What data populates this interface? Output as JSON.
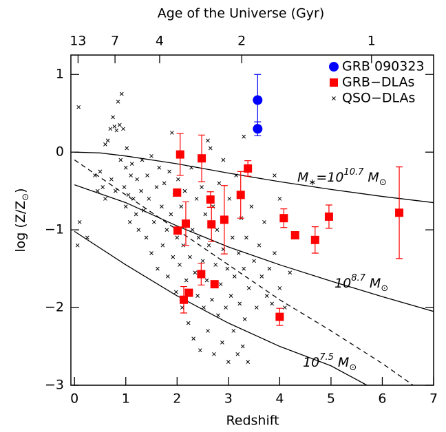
{
  "chart_data": {
    "type": "scatter",
    "x2_title": "Age of the Universe (Gyr)",
    "x_title": "Redshift",
    "y_title_parts": [
      {
        "text": "log (Z/Z"
      },
      {
        "text": "⊙",
        "pos": "sub"
      },
      {
        "text": ")"
      }
    ],
    "xlim": [
      -0.07,
      7
    ],
    "ylim": [
      -3,
      1.25
    ],
    "xticks": [
      0,
      1,
      2,
      3,
      4,
      5,
      6,
      7
    ],
    "yticks": [
      {
        "value": -3,
        "label": "−3"
      },
      {
        "value": -2,
        "label": "−2"
      },
      {
        "value": -1,
        "label": "−1"
      },
      0,
      1
    ],
    "x2ticks": [
      {
        "value": 0.07,
        "label": "13"
      },
      {
        "value": 0.79,
        "label": "7"
      },
      {
        "value": 1.66,
        "label": "4"
      },
      {
        "value": 3.26,
        "label": "2"
      },
      {
        "value": 5.79,
        "label": "1"
      }
    ],
    "legend": "upper right",
    "series": [
      {
        "name": "GRB 090323",
        "color": "#0000ff",
        "marker": "circle",
        "x": [
          3.57,
          3.57
        ],
        "values": [
          0.67,
          0.3
        ],
        "errors": [
          0.33,
          0.09
        ]
      },
      {
        "name": "GRB−DLAs",
        "color": "#ff0000",
        "marker": "square",
        "x": [
          2.06,
          2.48,
          3.38,
          2.0,
          2.17,
          2.01,
          2.65,
          2.67,
          2.92,
          3.24,
          4.08,
          4.3,
          4.69,
          4.96,
          6.33,
          2.47,
          2.73,
          2.13,
          2.23,
          4.0
        ],
        "values": [
          -0.03,
          -0.08,
          -0.21,
          -0.52,
          -0.92,
          -1.01,
          -0.61,
          -0.93,
          -0.87,
          -0.55,
          -0.85,
          -1.07,
          -1.13,
          -0.83,
          -0.78,
          -1.57,
          -1.7,
          -1.9,
          -1.81,
          -2.12
        ],
        "errors": [
          0.27,
          0.3,
          0.1,
          null,
          0.28,
          null,
          0.1,
          0.22,
          0.44,
          0.3,
          0.12,
          null,
          0.17,
          0.15,
          0.59,
          0.14,
          null,
          0.17,
          null,
          0.11
        ]
      },
      {
        "name": "QSO−DLAs",
        "color": "#000000",
        "marker": "cross",
        "x": [
          0.08,
          0.06,
          0.1,
          0.25,
          0.4,
          0.45,
          0.5,
          0.55,
          0.6,
          0.6,
          0.65,
          0.7,
          0.72,
          0.75,
          0.78,
          0.8,
          0.82,
          0.85,
          0.88,
          0.9,
          0.92,
          0.95,
          0.97,
          1.0,
          1.0,
          1.02,
          1.05,
          1.08,
          1.1,
          1.12,
          1.15,
          1.2,
          1.22,
          1.25,
          1.3,
          1.32,
          1.35,
          1.4,
          1.42,
          1.45,
          1.5,
          1.5,
          1.55,
          1.6,
          1.62,
          1.65,
          1.7,
          1.72,
          1.75,
          1.8,
          1.82,
          1.85,
          1.88,
          1.9,
          1.92,
          1.95,
          1.98,
          2.0,
          2.02,
          2.05,
          2.08,
          2.1,
          2.12,
          2.15,
          2.18,
          2.2,
          2.22,
          2.25,
          2.28,
          2.3,
          2.32,
          2.35,
          2.38,
          2.4,
          2.42,
          2.45,
          2.48,
          2.5,
          2.52,
          2.55,
          2.58,
          2.6,
          2.62,
          2.65,
          2.68,
          2.7,
          2.72,
          2.75,
          2.78,
          2.8,
          2.82,
          2.85,
          2.88,
          2.9,
          2.92,
          2.95,
          2.98,
          3.0,
          3.02,
          3.05,
          3.08,
          3.1,
          3.12,
          3.15,
          3.18,
          3.2,
          3.22,
          3.25,
          3.28,
          3.3,
          3.32,
          3.35,
          3.38,
          3.4,
          3.45,
          3.5,
          3.55,
          3.6,
          3.65,
          3.7,
          3.75,
          3.8,
          3.85,
          3.9,
          4.0,
          4.1,
          4.2,
          4.0,
          3.9,
          3.3,
          2.9,
          2.6
        ],
        "values": [
          0.58,
          -1.2,
          -0.9,
          -1.1,
          -0.3,
          -0.5,
          -0.25,
          -0.45,
          -0.6,
          0.1,
          0.15,
          0.3,
          -0.35,
          0.45,
          0.33,
          -0.5,
          0.28,
          0.65,
          0.35,
          -0.1,
          0.75,
          0.3,
          -0.45,
          -0.2,
          -0.7,
          0.05,
          -0.55,
          -0.9,
          -0.3,
          -0.15,
          -0.6,
          -0.8,
          -0.35,
          -1.0,
          -0.5,
          -0.1,
          -0.75,
          -1.1,
          -0.3,
          -0.6,
          -1.3,
          -0.05,
          -0.9,
          -0.45,
          -1.5,
          -0.2,
          -0.7,
          -1.2,
          -0.4,
          -1.0,
          -1.6,
          -0.25,
          -0.8,
          0.25,
          -1.35,
          -0.55,
          -1.8,
          -1.1,
          -0.35,
          -1.45,
          -0.7,
          -2.0,
          -1.2,
          -0.5,
          -1.65,
          -0.9,
          -2.2,
          -1.35,
          -0.2,
          -1.0,
          -2.4,
          -1.55,
          -0.6,
          -1.85,
          -1.1,
          -2.55,
          -0.45,
          -1.4,
          -2.0,
          -0.8,
          -1.65,
          -2.3,
          -1.2,
          0.05,
          -1.9,
          -0.7,
          -2.6,
          -1.45,
          -1.0,
          -2.1,
          -0.4,
          -1.7,
          -2.45,
          -1.25,
          -0.9,
          -2.0,
          -1.5,
          -2.7,
          -0.6,
          -1.85,
          -1.1,
          -2.3,
          -1.6,
          -0.3,
          -2.6,
          -1.3,
          -1.95,
          -0.85,
          -2.5,
          -1.5,
          -2.15,
          -1.1,
          -2.7,
          -1.75,
          -0.7,
          -1.4,
          -2.0,
          -1.2,
          -1.6,
          -0.9,
          -1.85,
          -1.5,
          -1.95,
          -1.3,
          -1.75,
          -2.0,
          -1.55,
          -0.6,
          -0.3,
          0.2,
          -0.1,
          0.15
        ]
      }
    ],
    "curves": [
      {
        "style": "solid",
        "color": "#000000",
        "x": [
          0,
          0.5,
          1,
          2,
          3,
          4,
          5,
          6,
          7
        ],
        "values": [
          0.0,
          -0.01,
          -0.05,
          -0.15,
          -0.27,
          -0.38,
          -0.48,
          -0.57,
          -0.65
        ],
        "label_parts": [
          {
            "text": "M"
          },
          {
            "text": "∗",
            "pos": "sub"
          },
          {
            "text": "=10"
          },
          {
            "text": "10.7",
            "pos": "sup"
          },
          {
            "text": " M"
          },
          {
            "text": "⊙",
            "pos": "sub"
          }
        ]
      },
      {
        "style": "solid",
        "color": "#000000",
        "x": [
          0,
          1,
          2,
          3,
          4,
          5,
          6,
          7
        ],
        "values": [
          -0.42,
          -0.65,
          -0.95,
          -1.22,
          -1.45,
          -1.66,
          -1.86,
          -2.05
        ],
        "label_parts": [
          {
            "text": "10"
          },
          {
            "text": "8.7",
            "pos": "sup"
          },
          {
            "text": " M"
          },
          {
            "text": "⊙",
            "pos": "sub"
          }
        ]
      },
      {
        "style": "solid",
        "color": "#000000",
        "x": [
          0,
          1,
          2,
          3,
          4,
          5,
          5.7
        ],
        "values": [
          -1.02,
          -1.45,
          -1.85,
          -2.2,
          -2.5,
          -2.75,
          -3.0
        ],
        "label_parts": [
          {
            "text": "10"
          },
          {
            "text": "7.5",
            "pos": "sup"
          },
          {
            "text": " M"
          },
          {
            "text": "⊙",
            "pos": "sub"
          }
        ]
      },
      {
        "style": "dashed",
        "color": "#000000",
        "x": [
          0,
          1,
          2,
          3,
          4,
          5,
          6,
          6.6
        ],
        "values": [
          -0.1,
          -0.55,
          -1.0,
          -1.45,
          -1.9,
          -2.3,
          -2.72,
          -3.0
        ]
      }
    ]
  }
}
